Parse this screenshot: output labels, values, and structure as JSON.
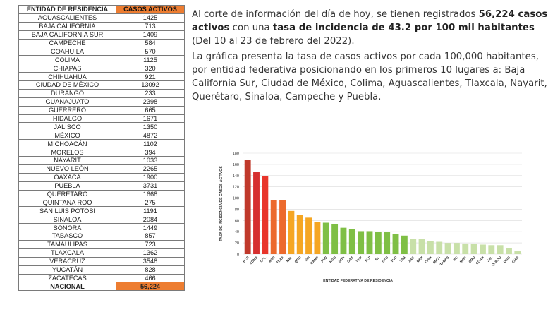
{
  "table": {
    "headers": [
      "ENTIDAD DE RESIDENCIA",
      "CASOS ACTIVOS"
    ],
    "rows": [
      [
        "AGUASCALIENTES",
        "1425"
      ],
      [
        "BAJA CALIFORNIA",
        "713"
      ],
      [
        "BAJA CALIFORNIA SUR",
        "1409"
      ],
      [
        "CAMPECHE",
        "584"
      ],
      [
        "COAHUILA",
        "570"
      ],
      [
        "COLIMA",
        "1125"
      ],
      [
        "CHIAPAS",
        "320"
      ],
      [
        "CHIHUAHUA",
        "921"
      ],
      [
        "CIUDAD DE MÉXICO",
        "13092"
      ],
      [
        "DURANGO",
        "233"
      ],
      [
        "GUANAJUATO",
        "2398"
      ],
      [
        "GUERRERO",
        "665"
      ],
      [
        "HIDALGO",
        "1671"
      ],
      [
        "JALISCO",
        "1350"
      ],
      [
        "MÉXICO",
        "4872"
      ],
      [
        "MICHOACÁN",
        "1102"
      ],
      [
        "MORELOS",
        "394"
      ],
      [
        "NAYARIT",
        "1033"
      ],
      [
        "NUEVO LEÓN",
        "2265"
      ],
      [
        "OAXACA",
        "1900"
      ],
      [
        "PUEBLA",
        "3731"
      ],
      [
        "QUERÉTARO",
        "1668"
      ],
      [
        "QUINTANA ROO",
        "275"
      ],
      [
        "SAN LUIS POTOSÍ",
        "1191"
      ],
      [
        "SINALOA",
        "2084"
      ],
      [
        "SONORA",
        "1449"
      ],
      [
        "TABASCO",
        "857"
      ],
      [
        "TAMAULIPAS",
        "723"
      ],
      [
        "TLAXCALA",
        "1362"
      ],
      [
        "VERACRUZ",
        "3548"
      ],
      [
        "YUCATÁN",
        "828"
      ],
      [
        "ZACATECAS",
        "466"
      ]
    ],
    "total": [
      "NACIONAL",
      "56,224"
    ],
    "header_color": "#ed7d31"
  },
  "paragraph1": {
    "t1": "Al corte de información del día de hoy, se tienen registrados ",
    "b1": "56,224 casos activos",
    "t2": " con una ",
    "b2": "tasa de incidencia de 43.2 por 100 mil habitantes",
    "t3": " (Del 10 al 23 de febrero del 2022)."
  },
  "paragraph2": "La gráfica presenta la tasa de casos activos por cada 100,000 habitantes, por entidad federativa posicionando en los primeros 10 lugares a: Baja California Sur, Ciudad de México, Colima, Aguascalientes, Tlaxcala, Nayarit, Querétaro, Sinaloa, Campeche y Puebla.",
  "chart_data": {
    "type": "bar",
    "categories": [
      "BCS",
      "CDMX",
      "COL",
      "AGS",
      "TLAX",
      "NAY",
      "QRO",
      "SIN",
      "CAMP",
      "PUE",
      "HGO",
      "SON",
      "OAX",
      "VER",
      "SLP",
      "NL",
      "GTO",
      "YUC",
      "TAB",
      "ZAC",
      "MEX",
      "CHIH",
      "MICH",
      "TAMPS",
      "BC",
      "MOR",
      "GRO",
      "COAH",
      "JAL",
      "Q. ROO",
      "DGO",
      "CHIS"
    ],
    "values": [
      168,
      146,
      139,
      96,
      96,
      77,
      70,
      65,
      57,
      56,
      53,
      47,
      45,
      41,
      41,
      40,
      39,
      36,
      33,
      27,
      27,
      23,
      22,
      20,
      20,
      19,
      18,
      17,
      16,
      16,
      11,
      5
    ],
    "colors": [
      "#c0392b",
      "#d62f2f",
      "#e8352b",
      "#ec6a2d",
      "#ec6a2d",
      "#f5a623",
      "#f5a623",
      "#f5a623",
      "#f5a623",
      "#7fbf45",
      "#7fbf45",
      "#7fbf45",
      "#7fbf45",
      "#7fbf45",
      "#7fbf45",
      "#7fbf45",
      "#7fbf45",
      "#7fbf45",
      "#7fbf45",
      "#c8e0a8",
      "#c8e0a8",
      "#c8e0a8",
      "#c8e0a8",
      "#c8e0a8",
      "#c8e0a8",
      "#c8e0a8",
      "#c8e0a8",
      "#c8e0a8",
      "#c8e0a8",
      "#c8e0a8",
      "#c8e0a8",
      "#c8e0a8"
    ],
    "xlabel": "ENTIDAD FEDERATIVA DE RESIDENCIA",
    "ylabel": "TASA DE INCIDENCIA DE CASOS ACTIVOS",
    "ylim": [
      0,
      180
    ],
    "yticks": [
      0,
      20,
      40,
      60,
      80,
      100,
      120,
      140,
      160,
      180
    ],
    "grid": true,
    "legend": "none"
  }
}
